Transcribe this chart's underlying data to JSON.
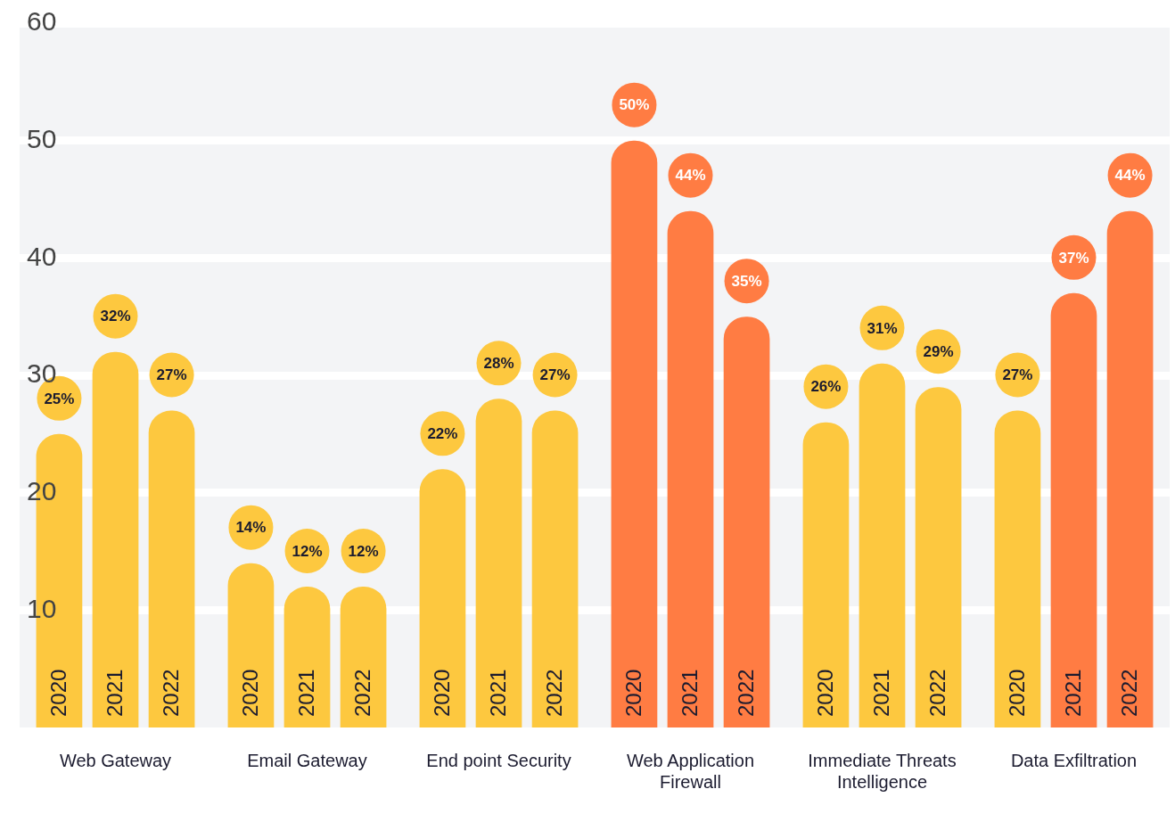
{
  "chart_data": {
    "type": "bar",
    "categories": [
      "Web Gateway",
      "Email Gateway",
      "End point Security",
      "Web Application Firewall",
      "Immediate Threats Intelligence",
      "Data Exfiltration"
    ],
    "series": [
      {
        "name": "2020",
        "colors": [
          "#fdc83f",
          "#fdc83f",
          "#fdc83f",
          "#ff7c43",
          "#fdc83f",
          "#fdc83f"
        ],
        "values": [
          25,
          14,
          22,
          50,
          26,
          27
        ],
        "value_labels": [
          "25%",
          "14%",
          "22%",
          "50%",
          "26%",
          "27%"
        ]
      },
      {
        "name": "2021",
        "colors": [
          "#fdc83f",
          "#fdc83f",
          "#fdc83f",
          "#ff7c43",
          "#fdc83f",
          "#ff7c43"
        ],
        "values": [
          32,
          12,
          28,
          44,
          31,
          37
        ],
        "value_labels": [
          "32%",
          "12%",
          "28%",
          "44%",
          "31%",
          "37%"
        ]
      },
      {
        "name": "2022",
        "colors": [
          "#fdc83f",
          "#fdc83f",
          "#fdc83f",
          "#ff7c43",
          "#fdc83f",
          "#ff7c43"
        ],
        "values": [
          27,
          12,
          27,
          35,
          29,
          44
        ],
        "value_labels": [
          "27%",
          "12%",
          "27%",
          "35%",
          "29%",
          "44%"
        ]
      }
    ],
    "ylim": [
      0,
      60
    ],
    "yticks": [
      10,
      20,
      30,
      40,
      50,
      60
    ],
    "grid": "y",
    "legend": false
  }
}
